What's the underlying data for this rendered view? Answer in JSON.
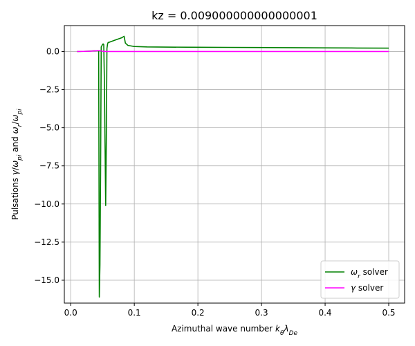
{
  "chart_data": {
    "type": "line",
    "title": "kz = 0.009000000000000001",
    "xlabel": "Azimuthal wave number k_θλ_De",
    "ylabel": "Pulsations  γ/ω_pi and ω_r/ω_pi",
    "xlim": [
      -0.01,
      0.525
    ],
    "ylim": [
      -16.5,
      1.7
    ],
    "x_ticks": [
      0.0,
      0.1,
      0.2,
      0.3,
      0.4,
      0.5
    ],
    "x_tick_labels": [
      "0.0",
      "0.1",
      "0.2",
      "0.3",
      "0.4",
      "0.5"
    ],
    "y_ticks": [
      0.0,
      -2.5,
      -5.0,
      -7.5,
      -10.0,
      -12.5,
      -15.0
    ],
    "y_tick_labels": [
      "0.0",
      "−2.5",
      "−5.0",
      "−7.5",
      "−10.0",
      "−12.5",
      "−15.0"
    ],
    "grid": true,
    "legend_position": "lower-right",
    "series": [
      {
        "name": "ω_r solver",
        "color": "#008000",
        "x": [
          0.01,
          0.02,
          0.03,
          0.04,
          0.044,
          0.045,
          0.046,
          0.047,
          0.048,
          0.05,
          0.051,
          0.052,
          0.053,
          0.054,
          0.055,
          0.056,
          0.057,
          0.058,
          0.059,
          0.06,
          0.07,
          0.08,
          0.084,
          0.086,
          0.09,
          0.1,
          0.12,
          0.15,
          0.2,
          0.25,
          0.3,
          0.35,
          0.4,
          0.45,
          0.5
        ],
        "y": [
          0.0,
          0.01,
          0.03,
          0.05,
          0.06,
          -16.1,
          -14.0,
          -8.0,
          0.3,
          0.45,
          0.5,
          0.45,
          -2.0,
          -6.0,
          -10.1,
          -6.0,
          0.2,
          0.5,
          0.6,
          0.6,
          0.75,
          0.9,
          1.0,
          0.55,
          0.4,
          0.33,
          0.3,
          0.29,
          0.28,
          0.27,
          0.26,
          0.25,
          0.24,
          0.23,
          0.22
        ]
      },
      {
        "name": "γ solver",
        "color": "#ff00ff",
        "x": [
          0.01,
          0.02,
          0.03,
          0.04,
          0.045,
          0.05,
          0.055,
          0.06,
          0.1,
          0.2,
          0.3,
          0.4,
          0.5
        ],
        "y": [
          0.0,
          0.01,
          0.02,
          0.05,
          0.06,
          0.02,
          0.0,
          0.0,
          0.0,
          0.0,
          0.0,
          0.0,
          0.0
        ]
      }
    ]
  }
}
